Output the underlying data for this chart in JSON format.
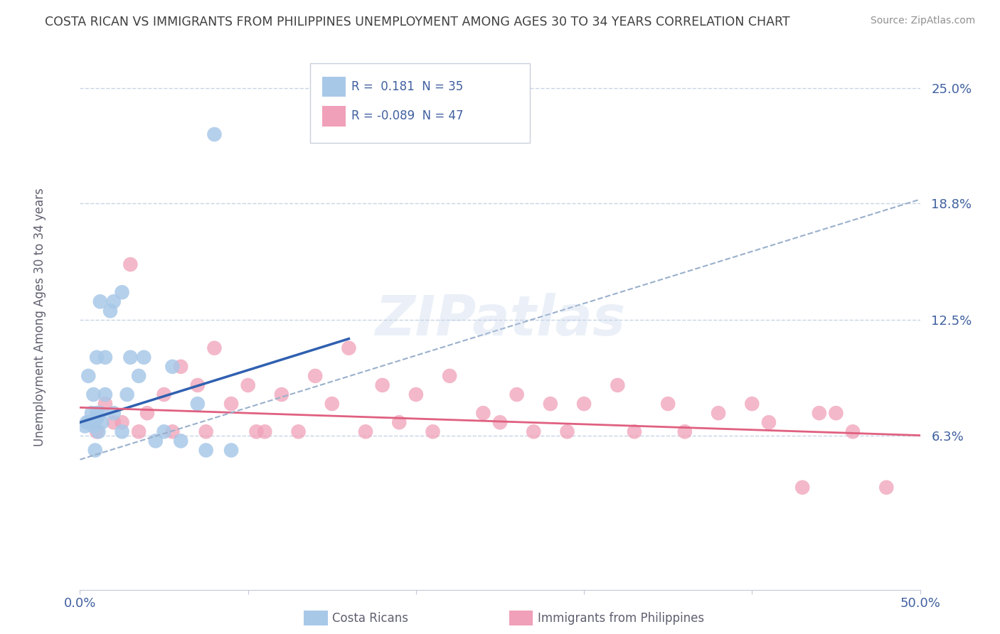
{
  "title": "COSTA RICAN VS IMMIGRANTS FROM PHILIPPINES UNEMPLOYMENT AMONG AGES 30 TO 34 YEARS CORRELATION CHART",
  "source": "Source: ZipAtlas.com",
  "ylabel": "Unemployment Among Ages 30 to 34 years",
  "ytick_values": [
    6.3,
    12.5,
    18.8,
    25.0
  ],
  "xlim": [
    0.0,
    50.0
  ],
  "ylim": [
    -2.0,
    27.0
  ],
  "blue_color": "#a8c8e8",
  "pink_color": "#f0a0b8",
  "blue_line_color": "#3060b0",
  "pink_line_color": "#e06080",
  "dashed_line_color": "#9ab0cc",
  "label_costa": "Costa Ricans",
  "label_phil": "Immigrants from Philippines",
  "watermark": "ZIPatlas",
  "blue_scatter_x": [
    1.5,
    2.0,
    1.8,
    1.2,
    2.5,
    3.0,
    3.5,
    2.8,
    1.0,
    0.5,
    1.5,
    2.0,
    0.8,
    0.5,
    1.0,
    0.8,
    1.2,
    0.3,
    0.6,
    1.0,
    1.3,
    2.5,
    3.8,
    5.5,
    7.0,
    9.0,
    0.4,
    0.7,
    0.9,
    1.1,
    4.5,
    5.0,
    6.0,
    7.5,
    8.0
  ],
  "blue_scatter_y": [
    10.5,
    13.5,
    13.0,
    13.5,
    14.0,
    10.5,
    9.5,
    8.5,
    10.5,
    9.5,
    8.5,
    7.5,
    8.5,
    7.0,
    7.5,
    6.8,
    7.5,
    6.8,
    7.0,
    7.2,
    7.0,
    6.5,
    10.5,
    10.0,
    8.0,
    5.5,
    7.0,
    7.5,
    5.5,
    6.5,
    6.0,
    6.5,
    6.0,
    5.5,
    22.5
  ],
  "pink_scatter_x": [
    1.5,
    2.0,
    3.0,
    4.0,
    5.0,
    6.0,
    7.0,
    8.0,
    9.0,
    10.0,
    12.0,
    14.0,
    15.0,
    16.0,
    18.0,
    20.0,
    22.0,
    24.0,
    26.0,
    28.0,
    30.0,
    32.0,
    35.0,
    38.0,
    40.0,
    45.0,
    48.0,
    1.0,
    2.5,
    3.5,
    5.5,
    7.5,
    10.5,
    13.0,
    17.0,
    21.0,
    25.0,
    29.0,
    33.0,
    36.0,
    41.0,
    44.0,
    46.0,
    11.0,
    19.0,
    27.0,
    43.0
  ],
  "pink_scatter_y": [
    8.0,
    7.0,
    15.5,
    7.5,
    8.5,
    10.0,
    9.0,
    11.0,
    8.0,
    9.0,
    8.5,
    9.5,
    8.0,
    11.0,
    9.0,
    8.5,
    9.5,
    7.5,
    8.5,
    8.0,
    8.0,
    9.0,
    8.0,
    7.5,
    8.0,
    7.5,
    3.5,
    6.5,
    7.0,
    6.5,
    6.5,
    6.5,
    6.5,
    6.5,
    6.5,
    6.5,
    7.0,
    6.5,
    6.5,
    6.5,
    7.0,
    7.5,
    6.5,
    6.5,
    7.0,
    6.5,
    3.5
  ],
  "background_color": "#ffffff",
  "grid_color": "#c8d4e4",
  "title_color": "#404040",
  "axis_label_color": "#606070",
  "tick_color": "#4060a0",
  "blue_line_x0": 0.0,
  "blue_line_y0": 7.0,
  "blue_line_x1": 16.0,
  "blue_line_y1": 11.5,
  "dashed_line_x0": 0.0,
  "dashed_line_y0": 5.0,
  "dashed_line_x1": 50.0,
  "dashed_line_y1": 19.0,
  "pink_line_x0": 0.0,
  "pink_line_y0": 7.8,
  "pink_line_x1": 50.0,
  "pink_line_y1": 6.3
}
